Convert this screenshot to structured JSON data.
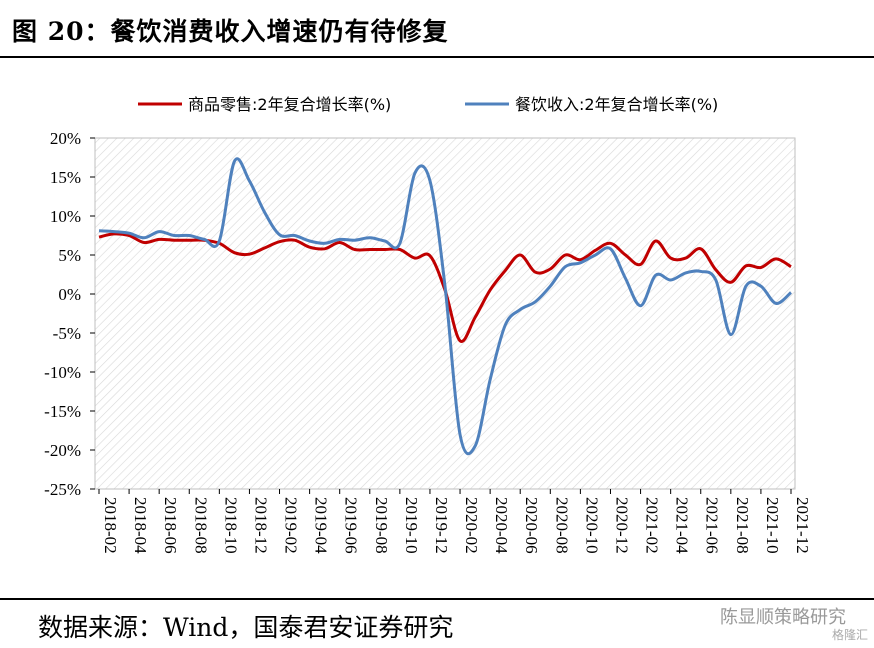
{
  "figure": {
    "title": "图 20：餐饮消费收入增速仍有待修复",
    "source": "数据来源：Wind，国泰君安证券研究",
    "watermark": "陈显顺策略研究",
    "watermark_sub": "格隆汇"
  },
  "chart_data": {
    "type": "line",
    "title": "",
    "xlabel": "",
    "ylabel": "",
    "ylim": [
      -25,
      20
    ],
    "y_ticks": [
      "20%",
      "15%",
      "10%",
      "5%",
      "0%",
      "-5%",
      "-10%",
      "-15%",
      "-20%",
      "-25%"
    ],
    "x_ticks": [
      "2018-02",
      "2018-04",
      "2018-06",
      "2018-08",
      "2018-10",
      "2018-12",
      "2019-02",
      "2019-04",
      "2019-06",
      "2019-08",
      "2019-10",
      "2019-12",
      "2020-02",
      "2020-04",
      "2020-06",
      "2020-08",
      "2020-10",
      "2020-12",
      "2021-02",
      "2021-04",
      "2021-06",
      "2021-08",
      "2021-10",
      "2021-12"
    ],
    "grid": "hatched background",
    "legend_position": "top",
    "x": [
      "2018-02",
      "2018-03",
      "2018-04",
      "2018-05",
      "2018-06",
      "2018-07",
      "2018-08",
      "2018-09",
      "2018-10",
      "2018-11",
      "2018-12",
      "2019-01",
      "2019-02",
      "2019-03",
      "2019-04",
      "2019-05",
      "2019-06",
      "2019-07",
      "2019-08",
      "2019-09",
      "2019-10",
      "2019-11",
      "2019-12",
      "2020-01",
      "2020-02",
      "2020-03",
      "2020-04",
      "2020-05",
      "2020-06",
      "2020-07",
      "2020-08",
      "2020-09",
      "2020-10",
      "2020-11",
      "2020-12",
      "2021-01",
      "2021-02",
      "2021-03",
      "2021-04",
      "2021-05",
      "2021-06",
      "2021-07",
      "2021-08",
      "2021-09",
      "2021-10",
      "2021-11",
      "2021-12"
    ],
    "series": [
      {
        "name": "商品零售:2年复合增长率(%)",
        "color": "#C00000",
        "values": [
          7.3,
          7.7,
          7.5,
          6.6,
          7.0,
          6.9,
          6.9,
          6.9,
          6.5,
          5.3,
          5.1,
          5.9,
          6.7,
          6.9,
          6.0,
          5.8,
          6.6,
          5.7,
          5.7,
          5.7,
          5.7,
          4.6,
          4.9,
          0.5,
          -6.0,
          -3.0,
          0.5,
          3.0,
          5.0,
          2.8,
          3.2,
          5.0,
          4.4,
          5.6,
          6.5,
          5.0,
          3.8,
          6.8,
          4.6,
          4.6,
          5.8,
          3.1,
          1.5,
          3.6,
          3.4,
          4.5,
          3.5
        ]
      },
      {
        "name": "餐饮收入:2年复合增长率(%)",
        "color": "#4F81BD",
        "values": [
          8.1,
          8.0,
          7.8,
          7.2,
          8.0,
          7.5,
          7.5,
          7.0,
          6.8,
          17.0,
          14.5,
          10.5,
          7.6,
          7.5,
          6.8,
          6.5,
          7.0,
          6.9,
          7.2,
          6.8,
          6.5,
          15.5,
          14.5,
          1.0,
          -18.0,
          -19.5,
          -11.0,
          -4.0,
          -2.0,
          -1.0,
          1.0,
          3.5,
          4.0,
          5.0,
          5.8,
          2.0,
          -1.5,
          2.4,
          1.8,
          2.7,
          2.9,
          1.8,
          -5.2,
          1.0,
          1.0,
          -1.2,
          0.2
        ]
      }
    ]
  }
}
